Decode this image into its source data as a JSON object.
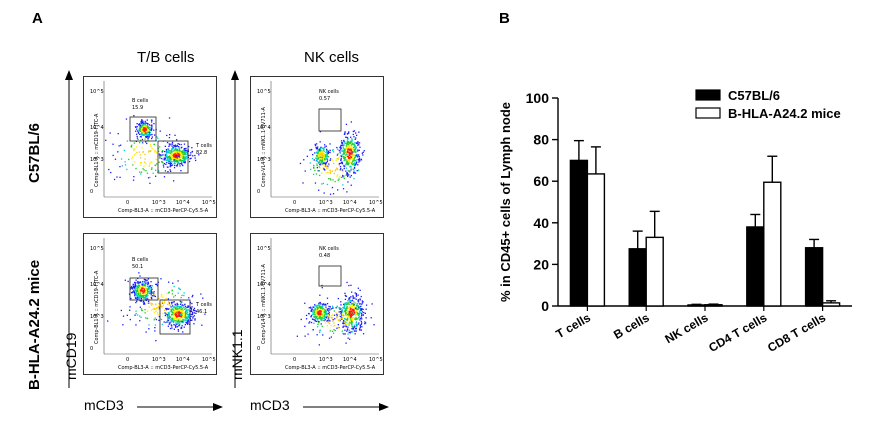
{
  "panels": {
    "a_label": "A",
    "b_label": "B"
  },
  "flow": {
    "col_titles": [
      "T/B cells",
      "NK cells"
    ],
    "row_labels": [
      "C57BL/6",
      "B-HLA-A24.2 mice"
    ],
    "y_axis_labels": [
      "mCD19",
      "mNK1.1"
    ],
    "x_axis_labels": [
      "mCD3",
      "mCD3"
    ],
    "plots": [
      {
        "x_param": "Comp-BL3-A :: mCD3-PerCP-Cy5.5-A",
        "y_param": "Comp-BL1-A :: mCD19-FITC-A",
        "gates": [
          {
            "name": "B cells",
            "value": "15.9"
          },
          {
            "name": "T cells",
            "value": "82.8"
          }
        ]
      },
      {
        "x_param": "Comp-BL3-A :: mCD3-PerCP-Cy5.5-A",
        "y_param": "Comp-VL4-A :: mNK1.1-BV711-A",
        "gates": [
          {
            "name": "NK cells",
            "value": "0.57"
          }
        ]
      },
      {
        "x_param": "Comp-BL3-A :: mCD3-PerCP-Cy5.5-A",
        "y_param": "Comp-BL1-A :: mCD19-FITC-A",
        "gates": [
          {
            "name": "B cells",
            "value": "50.1"
          },
          {
            "name": "T cells",
            "value": "46.1"
          }
        ]
      },
      {
        "x_param": "Comp-BL3-A :: mCD3-PerCP-Cy5.5-A",
        "y_param": "Comp-VL4-A :: mNK1.1-BV711-A",
        "gates": [
          {
            "name": "NK cells",
            "value": "0.48"
          }
        ]
      }
    ],
    "tick_labels": [
      "0",
      "10^3",
      "10^4",
      "10^5"
    ]
  },
  "chart_data": {
    "type": "bar",
    "ylabel": "% in CD45+ cells of Lymph node",
    "ylim": [
      0,
      100
    ],
    "yticks": [
      0,
      20,
      40,
      60,
      80,
      100
    ],
    "categories": [
      "T cells",
      "B cells",
      "NK cells",
      "CD4 T cells",
      "CD8 T cells"
    ],
    "series": [
      {
        "name": "C57BL/6",
        "fill": "#000000",
        "values": [
          70,
          27.5,
          0.5,
          38,
          28
        ],
        "errors": [
          9.5,
          8.5,
          0.3,
          6,
          4
        ]
      },
      {
        "name": "B-HLA-A24.2 mice",
        "fill": "#ffffff",
        "values": [
          63.5,
          33,
          0.6,
          59.5,
          1.5
        ],
        "errors": [
          13,
          12.5,
          0.3,
          12.5,
          1
        ]
      }
    ],
    "legend": "top-right"
  }
}
